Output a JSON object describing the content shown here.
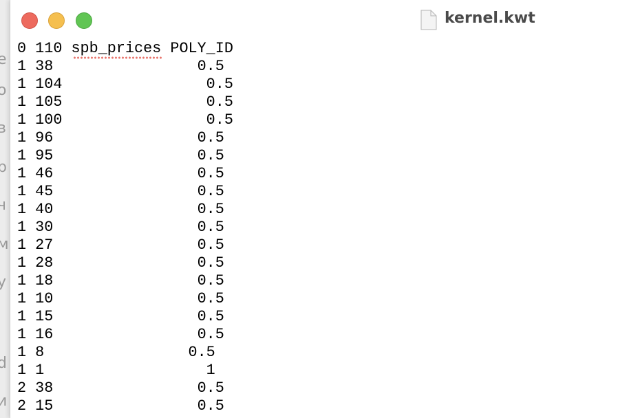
{
  "window": {
    "title": "kernel.kwt"
  },
  "background_fragments": [
    "е",
    "о",
    "в",
    "р",
    "ч",
    "м",
    "у",
    "d",
    "и"
  ],
  "document": {
    "lines": [
      "0 110 spb_prices POLY_ID",
      "1 38                0.5",
      "1 104                0.5",
      "1 105                0.5",
      "1 100                0.5",
      "1 96                0.5",
      "1 95                0.5",
      "1 46                0.5",
      "1 45                0.5",
      "1 40                0.5",
      "1 30                0.5",
      "1 27                0.5",
      "1 28                0.5",
      "1 18                0.5",
      "1 10                0.5",
      "1 15                0.5",
      "1 16                0.5",
      "1 8                0.5",
      "1 1                  1",
      "2 38                0.5",
      "2 15                0.5"
    ]
  }
}
